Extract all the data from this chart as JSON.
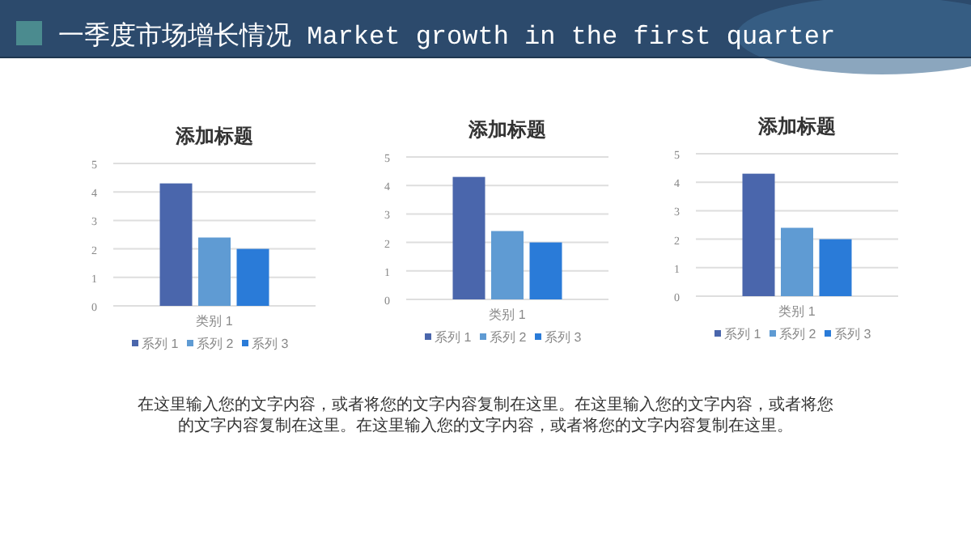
{
  "chart_data": [
    {
      "type": "bar",
      "title": "添加标题",
      "categories": [
        "类别 1"
      ],
      "series": [
        {
          "name": "系列 1",
          "color": "#4a66ac",
          "values": [
            4.3
          ]
        },
        {
          "name": "系列 2",
          "color": "#5f9bd3",
          "values": [
            2.4
          ]
        },
        {
          "name": "系列 3",
          "color": "#2a7bd8",
          "values": [
            2.0
          ]
        }
      ],
      "ylim": [
        0,
        5
      ],
      "yticks": [
        0,
        1,
        2,
        3,
        4,
        5
      ],
      "grid": "y",
      "legend": "bottom"
    },
    {
      "type": "bar",
      "title": "添加标题",
      "categories": [
        "类别 1"
      ],
      "series": [
        {
          "name": "系列 1",
          "color": "#4a66ac",
          "values": [
            4.3
          ]
        },
        {
          "name": "系列 2",
          "color": "#5f9bd3",
          "values": [
            2.4
          ]
        },
        {
          "name": "系列 3",
          "color": "#2a7bd8",
          "values": [
            2.0
          ]
        }
      ],
      "ylim": [
        0,
        5
      ],
      "yticks": [
        0,
        1,
        2,
        3,
        4,
        5
      ],
      "grid": "y",
      "legend": "bottom"
    },
    {
      "type": "bar",
      "title": "添加标题",
      "categories": [
        "类别 1"
      ],
      "series": [
        {
          "name": "系列 1",
          "color": "#4a66ac",
          "values": [
            4.3
          ]
        },
        {
          "name": "系列 2",
          "color": "#5f9bd3",
          "values": [
            2.4
          ]
        },
        {
          "name": "系列 3",
          "color": "#2a7bd8",
          "values": [
            2.0
          ]
        }
      ],
      "ylim": [
        0,
        5
      ],
      "yticks": [
        0,
        1,
        2,
        3,
        4,
        5
      ],
      "grid": "y",
      "legend": "bottom"
    },
    {
      "type": "other",
      "title": "一季度市场增长情况 Market growth in the first quarter",
      "annotations": [
        "在这里输入您的文字内容，或者将您的文字内容复制在这里。在这里输入您的文字内容，或者将您的文字内容复制在这里。在这里输入您的文字内容，或者将您的文字内容复制在这里。"
      ]
    }
  ]
}
